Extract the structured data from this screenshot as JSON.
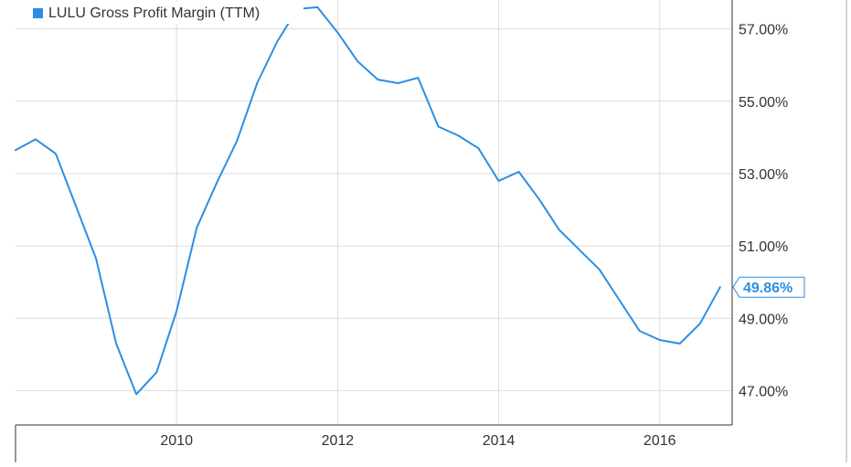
{
  "chart_data": {
    "type": "line",
    "title": "",
    "xlabel": "",
    "ylabel": "",
    "series": [
      {
        "name": "LULU Gross Profit Margin (TTM)",
        "color": "#2B8FE4",
        "x": [
          2008.0,
          2008.25,
          2008.5,
          2008.75,
          2009.0,
          2009.25,
          2009.5,
          2009.75,
          2010.0,
          2010.25,
          2010.5,
          2010.75,
          2011.0,
          2011.25,
          2011.5,
          2011.75,
          2012.0,
          2012.25,
          2012.5,
          2012.75,
          2013.0,
          2013.25,
          2013.5,
          2013.75,
          2014.0,
          2014.25,
          2014.5,
          2014.75,
          2015.0,
          2015.25,
          2015.5,
          2015.75,
          2016.0,
          2016.25,
          2016.5,
          2016.75
        ],
        "y": [
          53.65,
          53.95,
          53.55,
          52.1,
          50.65,
          48.3,
          46.9,
          47.5,
          49.2,
          51.5,
          52.75,
          53.9,
          55.5,
          56.65,
          57.55,
          57.6,
          56.9,
          56.1,
          55.6,
          55.5,
          55.65,
          54.3,
          54.05,
          53.7,
          52.8,
          53.05,
          52.3,
          51.45,
          50.9,
          50.35,
          49.5,
          48.65,
          48.4,
          48.3,
          48.85,
          49.86
        ]
      }
    ],
    "legend": {
      "label": "LULU Gross Profit Margin (TTM)",
      "position": "top-left"
    },
    "x_ticks": [
      "2010",
      "2012",
      "2014",
      "2016"
    ],
    "x_tick_values": [
      2010,
      2012,
      2014,
      2016
    ],
    "y_ticks": [
      "47.00%",
      "49.00%",
      "51.00%",
      "53.00%",
      "55.00%",
      "57.00%"
    ],
    "y_tick_values": [
      47,
      49,
      51,
      53,
      55,
      57
    ],
    "xlim": [
      2008.0,
      2016.9
    ],
    "ylim": [
      46.05,
      57.8
    ],
    "last_value_label": "49.86%",
    "grid": true,
    "y_axis_side": "right"
  }
}
